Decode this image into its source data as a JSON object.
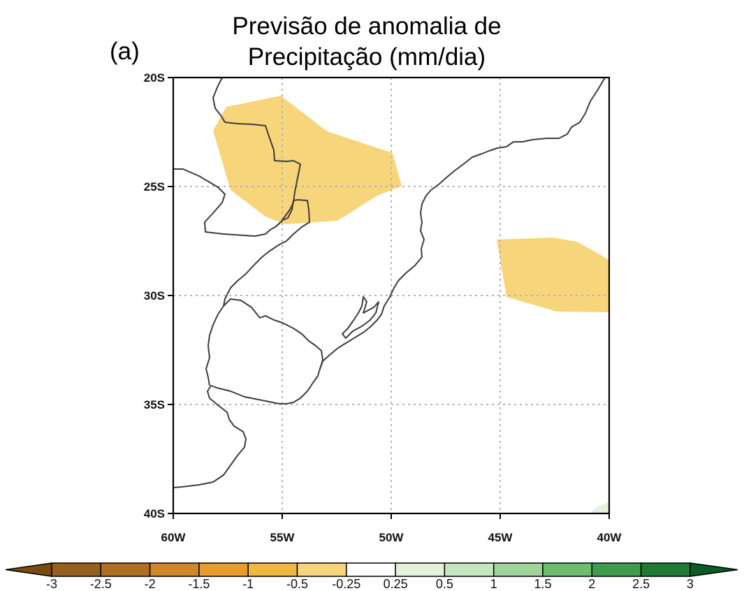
{
  "title_line1": "Previsão de anomalia de",
  "title_line2": "Precipitação (mm/dia)",
  "panel_label": "(a)",
  "map": {
    "lon_range": [
      -60,
      -40
    ],
    "lat_range": [
      -40,
      -20
    ],
    "gridlines": "dotted",
    "lat_ticks": [
      {
        "value": -20,
        "label": "20S"
      },
      {
        "value": -25,
        "label": "25S"
      },
      {
        "value": -30,
        "label": "30S"
      },
      {
        "value": -35,
        "label": "35S"
      },
      {
        "value": -40,
        "label": "40S"
      }
    ],
    "lon_ticks": [
      {
        "value": -60,
        "label": "60W"
      },
      {
        "value": -55,
        "label": "55W"
      },
      {
        "value": -50,
        "label": "50W"
      },
      {
        "value": -45,
        "label": "45W"
      },
      {
        "value": -40,
        "label": "40W"
      }
    ],
    "anomaly_regions": [
      {
        "name": "paraguay-southern-brazil",
        "range": "-0.5 to -0.25",
        "color": "#f7d57a"
      },
      {
        "name": "atlantic-east",
        "range": "-0.5 to -0.25",
        "color": "#f7d57a"
      },
      {
        "name": "atlantic-southeast-corner",
        "range": "0.25 to 0.5",
        "color": "#e4f2dc"
      }
    ]
  },
  "colorbar": {
    "labels": [
      "-3",
      "-2.5",
      "-2",
      "-1.5",
      "-1",
      "-0.5",
      "-0.25",
      "0.25",
      "0.5",
      "1",
      "1.5",
      "2",
      "2.5",
      "3"
    ],
    "colors": [
      "#7a4a12",
      "#95601b",
      "#b07022",
      "#d18726",
      "#e99b2b",
      "#f1b83f",
      "#f7d57a",
      "#ffffff",
      "#e4f2dc",
      "#c4e6c0",
      "#9fd49a",
      "#6ebd6e",
      "#3f9c4e",
      "#1f7a36",
      "#0a5c24"
    ]
  }
}
